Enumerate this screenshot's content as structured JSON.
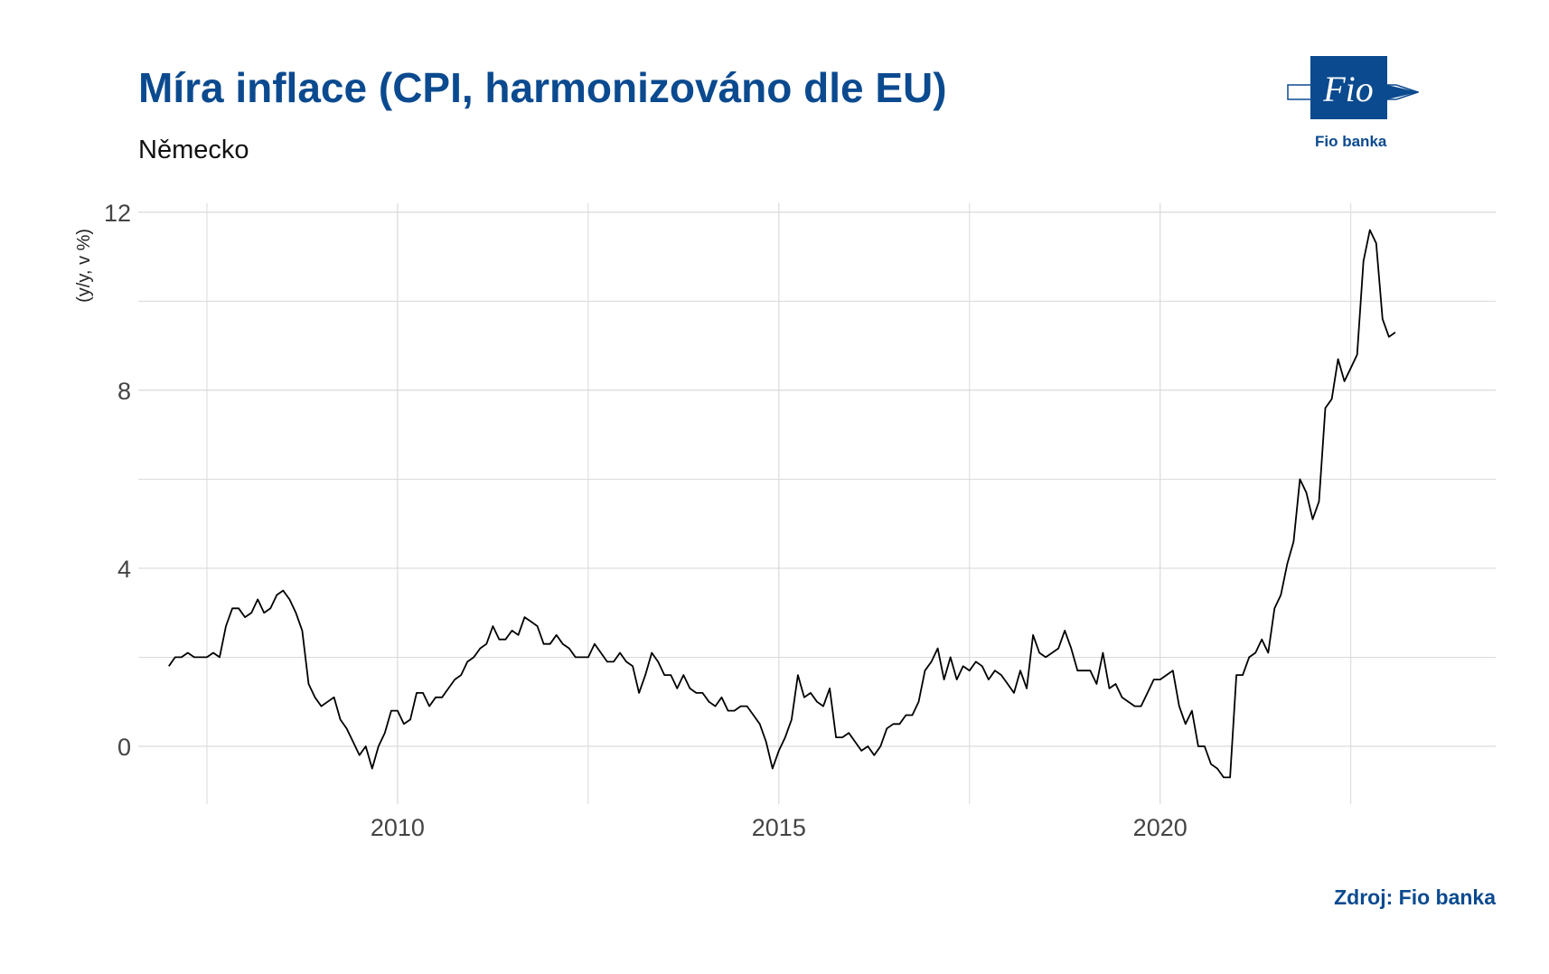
{
  "header": {
    "title": "Míra inflace (CPI, harmonizováno dle EU)",
    "subtitle": "Německo"
  },
  "logo": {
    "mark_text": "Fio",
    "caption": "Fio banka"
  },
  "footer": {
    "source": "Zdroj: Fio banka"
  },
  "colors": {
    "brand": "#0b4a8f",
    "line": "#000000",
    "grid": "#d9d9d9"
  },
  "chart_data": {
    "type": "line",
    "title": "Míra inflace (CPI, harmonizováno dle EU)",
    "subtitle": "Německo",
    "xlabel": "",
    "ylabel": "(y/y, v %)",
    "xlim": [
      2006.6,
      2024.4
    ],
    "ylim": [
      -1.3,
      12.2
    ],
    "y_ticks": [
      0,
      4,
      8,
      12
    ],
    "x_ticks": [
      2010,
      2015,
      2020
    ],
    "x_ticks_labels": [
      "2010",
      "2015",
      "2020"
    ],
    "grid": true,
    "legend": "none",
    "series": [
      {
        "x_start": 2007.0,
        "step": 0.0833333,
        "values": [
          1.8,
          2.0,
          2.0,
          2.1,
          2.0,
          2.0,
          2.0,
          2.1,
          2.0,
          2.7,
          3.1,
          3.1,
          2.9,
          3.0,
          3.3,
          3.0,
          3.1,
          3.4,
          3.5,
          3.3,
          3.0,
          2.6,
          1.4,
          1.1,
          0.9,
          1.0,
          1.1,
          0.6,
          0.4,
          0.1,
          -0.2,
          0.0,
          -0.5,
          0.0,
          0.3,
          0.8,
          0.8,
          0.5,
          0.6,
          1.2,
          1.2,
          0.9,
          1.1,
          1.1,
          1.3,
          1.5,
          1.6,
          1.9,
          2.0,
          2.2,
          2.3,
          2.7,
          2.4,
          2.4,
          2.6,
          2.5,
          2.9,
          2.8,
          2.7,
          2.3,
          2.3,
          2.5,
          2.3,
          2.2,
          2.0,
          2.0,
          2.0,
          2.3,
          2.1,
          1.9,
          1.9,
          2.1,
          1.9,
          1.8,
          1.2,
          1.6,
          2.1,
          1.9,
          1.6,
          1.6,
          1.3,
          1.6,
          1.3,
          1.2,
          1.2,
          1.0,
          0.9,
          1.1,
          0.8,
          0.8,
          0.9,
          0.9,
          0.7,
          0.5,
          0.1,
          -0.5,
          -0.1,
          0.2,
          0.6,
          1.6,
          1.1,
          1.2,
          1.0,
          0.9,
          1.3,
          0.2,
          0.2,
          0.3,
          0.1,
          -0.1,
          0.0,
          -0.2,
          0.0,
          0.4,
          0.5,
          0.5,
          0.7,
          0.7,
          1.0,
          1.7,
          1.9,
          2.2,
          1.5,
          2.0,
          1.5,
          1.8,
          1.7,
          1.9,
          1.8,
          1.5,
          1.7,
          1.6,
          1.4,
          1.2,
          1.7,
          1.3,
          2.5,
          2.1,
          2.0,
          2.1,
          2.2,
          2.6,
          2.2,
          1.7,
          1.7,
          1.7,
          1.4,
          2.1,
          1.3,
          1.4,
          1.1,
          1.0,
          0.9,
          0.9,
          1.2,
          1.5,
          1.5,
          1.6,
          1.7,
          0.9,
          0.5,
          0.8,
          0.0,
          0.0,
          -0.4,
          -0.5,
          -0.7,
          -0.7,
          1.6,
          1.6,
          2.0,
          2.1,
          2.4,
          2.1,
          3.1,
          3.4,
          4.1,
          4.6,
          6.0,
          5.7,
          5.1,
          5.5,
          7.6,
          7.8,
          8.7,
          8.2,
          8.5,
          8.8,
          10.9,
          11.6,
          11.3,
          9.6,
          9.2,
          9.3
        ]
      }
    ]
  }
}
